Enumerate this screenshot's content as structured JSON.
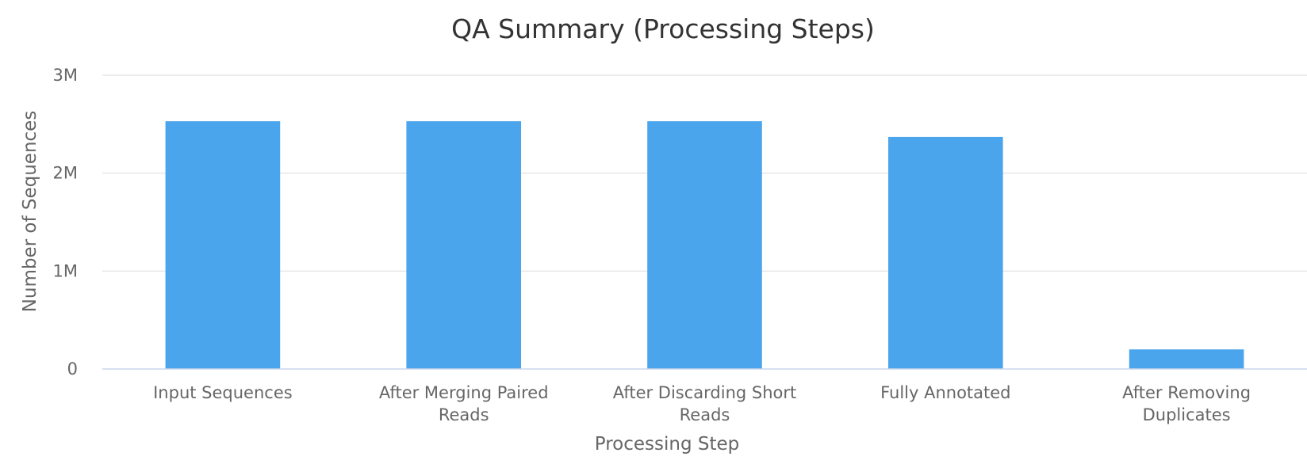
{
  "chart_data": {
    "type": "bar",
    "title": "QA Summary (Processing Steps)",
    "xlabel": "Processing Step",
    "ylabel": "Number of Sequences",
    "categories": [
      [
        "Input Sequences"
      ],
      [
        "After Merging Paired",
        "Reads"
      ],
      [
        "After Discarding Short",
        "Reads"
      ],
      [
        "Fully Annotated"
      ],
      [
        "After Removing",
        "Duplicates"
      ]
    ],
    "values": [
      2530000,
      2530000,
      2530000,
      2370000,
      200000
    ],
    "ylim": [
      0,
      3000000
    ],
    "y_ticks": [
      {
        "value": 0,
        "label": "0"
      },
      {
        "value": 1000000,
        "label": "1M"
      },
      {
        "value": 2000000,
        "label": "2M"
      },
      {
        "value": 3000000,
        "label": "3M"
      }
    ],
    "grid": true,
    "legend": "none",
    "colors": {
      "bar": "#4ba5ec",
      "grid": "#e6e6e6",
      "axis": "#ccd6eb"
    }
  }
}
